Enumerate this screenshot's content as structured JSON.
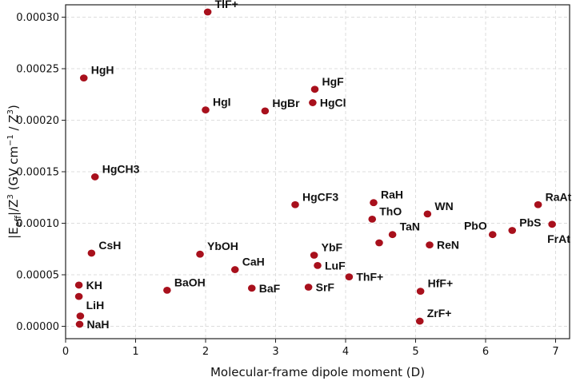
{
  "chart_data": {
    "type": "scatter",
    "title": "",
    "xlabel": "Molecular-frame dipole moment (D)",
    "ylabel_main": "|E",
    "ylabel_sub": "eff",
    "ylabel_mid": "|/Z",
    "ylabel_sup1": "3",
    "ylabel_units_a": "  (GV cm",
    "ylabel_sup2": "−1",
    "ylabel_units_b": " / Z",
    "ylabel_sup3": "3",
    "ylabel_units_c": ")",
    "xlim": [
      0,
      7.2
    ],
    "ylim": [
      -1.2e-05,
      0.000312
    ],
    "xticks": [
      0,
      1,
      2,
      3,
      4,
      5,
      6,
      7
    ],
    "xtick_labels": [
      "0",
      "1",
      "2",
      "3",
      "4",
      "5",
      "6",
      "7"
    ],
    "yticks": [
      0,
      5e-05,
      0.0001,
      0.00015,
      0.0002,
      0.00025,
      0.0003
    ],
    "ytick_labels": [
      "0.00000",
      "0.00005",
      "0.00010",
      "0.00015",
      "0.00020",
      "0.00025",
      "0.00030"
    ],
    "grid": true,
    "marker_color": "#a8101c",
    "points": [
      {
        "label": "TlF+",
        "x": 2.03,
        "y": 0.000305,
        "pos": "top-right"
      },
      {
        "label": "HgH",
        "x": 0.26,
        "y": 0.000241,
        "pos": "top-right"
      },
      {
        "label": "HgF",
        "x": 3.56,
        "y": 0.00023,
        "pos": "top-right"
      },
      {
        "label": "HgI",
        "x": 2.0,
        "y": 0.00021,
        "pos": "top-right"
      },
      {
        "label": "HgBr",
        "x": 2.85,
        "y": 0.000209,
        "pos": "top-right"
      },
      {
        "label": "HgCl",
        "x": 3.53,
        "y": 0.000217,
        "pos": "right"
      },
      {
        "label": "HgCH3",
        "x": 0.42,
        "y": 0.000145,
        "pos": "top-right"
      },
      {
        "label": "HgCF3",
        "x": 3.28,
        "y": 0.000118,
        "pos": "top-right"
      },
      {
        "label": "RaH",
        "x": 4.4,
        "y": 0.00012,
        "pos": "top-right"
      },
      {
        "label": "ThO",
        "x": 4.38,
        "y": 0.000104,
        "pos": "top-right"
      },
      {
        "label": "WN",
        "x": 5.17,
        "y": 0.000109,
        "pos": "top-right"
      },
      {
        "label": "TaN",
        "x": 4.67,
        "y": 8.9e-05,
        "pos": "top-right"
      },
      {
        "label": "",
        "x": 4.48,
        "y": 8.1e-05,
        "pos": "none"
      },
      {
        "label": "ReN",
        "x": 5.2,
        "y": 7.9e-05,
        "pos": "right"
      },
      {
        "label": "PbO",
        "x": 6.1,
        "y": 8.9e-05,
        "pos": "top-left"
      },
      {
        "label": "PbS",
        "x": 6.38,
        "y": 9.3e-05,
        "pos": "top-right"
      },
      {
        "label": "RaAt",
        "x": 6.75,
        "y": 0.000118,
        "pos": "top-right"
      },
      {
        "label": "FrAt",
        "x": 6.95,
        "y": 9.9e-05,
        "pos": "bottom"
      },
      {
        "label": "CsH",
        "x": 0.37,
        "y": 7.1e-05,
        "pos": "top-right"
      },
      {
        "label": "YbOH",
        "x": 1.92,
        "y": 7e-05,
        "pos": "top-right"
      },
      {
        "label": "YbF",
        "x": 3.55,
        "y": 6.9e-05,
        "pos": "top-right"
      },
      {
        "label": "CaH",
        "x": 2.42,
        "y": 5.5e-05,
        "pos": "top-right"
      },
      {
        "label": "LuF",
        "x": 3.6,
        "y": 5.9e-05,
        "pos": "right"
      },
      {
        "label": "ThF+",
        "x": 4.05,
        "y": 4.8e-05,
        "pos": "right"
      },
      {
        "label": "KH",
        "x": 0.19,
        "y": 4e-05,
        "pos": "right"
      },
      {
        "label": "BaOH",
        "x": 1.45,
        "y": 3.5e-05,
        "pos": "top-right"
      },
      {
        "label": "BaF",
        "x": 2.66,
        "y": 3.7e-05,
        "pos": "right"
      },
      {
        "label": "SrF",
        "x": 3.47,
        "y": 3.8e-05,
        "pos": "right"
      },
      {
        "label": "HfF+",
        "x": 5.07,
        "y": 3.4e-05,
        "pos": "top-right"
      },
      {
        "label": "LiH",
        "x": 0.19,
        "y": 2.9e-05,
        "pos": "bottom-right"
      },
      {
        "label": "NaH",
        "x": 0.2,
        "y": 2e-06,
        "pos": "right"
      },
      {
        "label": "",
        "x": 0.21,
        "y": 1e-05,
        "pos": "none"
      },
      {
        "label": "ZrF+",
        "x": 5.06,
        "y": 5e-06,
        "pos": "top-right"
      }
    ]
  }
}
